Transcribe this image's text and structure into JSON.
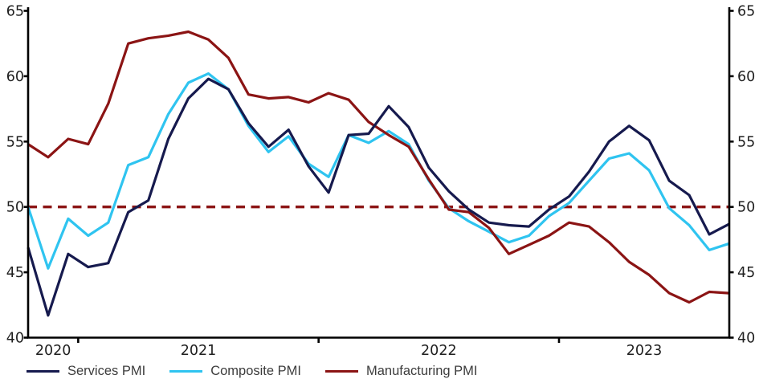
{
  "chart_data": {
    "type": "line",
    "title": "",
    "x_unit": "month",
    "months": [
      "2020-10",
      "2020-11",
      "2020-12",
      "2021-01",
      "2021-02",
      "2021-03",
      "2021-04",
      "2021-05",
      "2021-06",
      "2021-07",
      "2021-08",
      "2021-09",
      "2021-10",
      "2021-11",
      "2021-12",
      "2022-01",
      "2022-02",
      "2022-03",
      "2022-04",
      "2022-05",
      "2022-06",
      "2022-07",
      "2022-08",
      "2022-09",
      "2022-10",
      "2022-11",
      "2022-12",
      "2023-01",
      "2023-02",
      "2023-03",
      "2023-04",
      "2023-05",
      "2023-06",
      "2023-07",
      "2023-08",
      "2023-09"
    ],
    "x_tick_labels": [
      "2020",
      "2021",
      "2022",
      "2023"
    ],
    "y_axis": {
      "min": 40,
      "max": 65,
      "step": 5,
      "ticks": [
        40,
        45,
        50,
        55,
        60,
        65
      ],
      "sides": [
        "left",
        "right"
      ]
    },
    "grid": false,
    "legend_position": "bottom-left",
    "reference_line": {
      "value": 50,
      "style": "dashed",
      "color": "#8B1414"
    },
    "series": [
      {
        "name": "Services PMI",
        "color": "#161A4E",
        "values": [
          46.9,
          41.7,
          46.4,
          45.4,
          45.7,
          49.6,
          50.5,
          55.2,
          58.3,
          59.8,
          59.0,
          56.4,
          54.6,
          55.9,
          53.1,
          51.1,
          55.5,
          55.6,
          57.7,
          56.1,
          53.0,
          51.2,
          49.8,
          48.8,
          48.6,
          48.5,
          49.8,
          50.8,
          52.7,
          55.0,
          56.2,
          55.1,
          52.0,
          50.9,
          47.9,
          48.7
        ]
      },
      {
        "name": "Composite PMI",
        "color": "#2FC4F0",
        "values": [
          50.0,
          45.3,
          49.1,
          47.8,
          48.8,
          53.2,
          53.8,
          57.1,
          59.5,
          60.2,
          59.0,
          56.2,
          54.2,
          55.4,
          53.3,
          52.3,
          55.5,
          54.9,
          55.8,
          54.8,
          52.0,
          49.9,
          48.9,
          48.1,
          47.3,
          47.8,
          49.3,
          50.3,
          52.0,
          53.7,
          54.1,
          52.8,
          49.9,
          48.6,
          46.7,
          47.2
        ]
      },
      {
        "name": "Manufacturing PMI",
        "color": "#8B1414",
        "values": [
          54.8,
          53.8,
          55.2,
          54.8,
          57.9,
          62.5,
          62.9,
          63.1,
          63.4,
          62.8,
          61.4,
          58.6,
          58.3,
          58.4,
          58.0,
          58.7,
          58.2,
          56.5,
          55.5,
          54.6,
          52.1,
          49.8,
          49.6,
          48.4,
          46.4,
          47.1,
          47.8,
          48.8,
          48.5,
          47.3,
          45.8,
          44.8,
          43.4,
          42.7,
          43.5,
          43.4
        ]
      }
    ]
  },
  "colors": {
    "axis": "#000000",
    "tick_label": "#1f1f1f",
    "legend_text": "#3c3c3c",
    "background": "#ffffff"
  }
}
